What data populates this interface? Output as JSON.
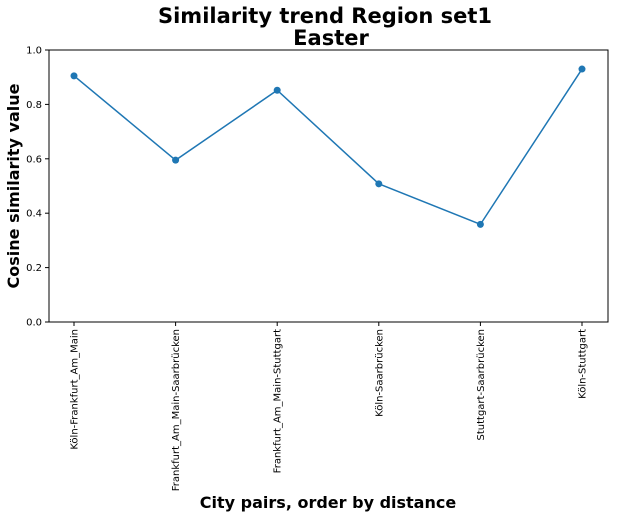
{
  "chart_data": {
    "type": "line",
    "title": [
      "Similarity trend Region set1",
      "Easter"
    ],
    "xlabel": "City pairs, order by distance",
    "ylabel": "Cosine similarity value",
    "categories": [
      "Köln-Frankfurt_Am_Main",
      "Frankfurt_Am_Main-Saarbrücken",
      "Frankfurt_Am_Main-Stuttgart",
      "Köln-Saarbrücken",
      "Stuttgart-Saarbrücken",
      "Köln-Stuttgart"
    ],
    "series": [
      {
        "values": [
          0.905,
          0.595,
          0.852,
          0.508,
          0.359,
          0.93
        ],
        "color": "#1f77b4",
        "marker": "circle"
      }
    ],
    "ylim": [
      0.0,
      1.0
    ],
    "yticks": [
      "0.0",
      "0.2",
      "0.4",
      "0.6",
      "0.8",
      "1.0"
    ],
    "grid": false,
    "legend": "none"
  }
}
